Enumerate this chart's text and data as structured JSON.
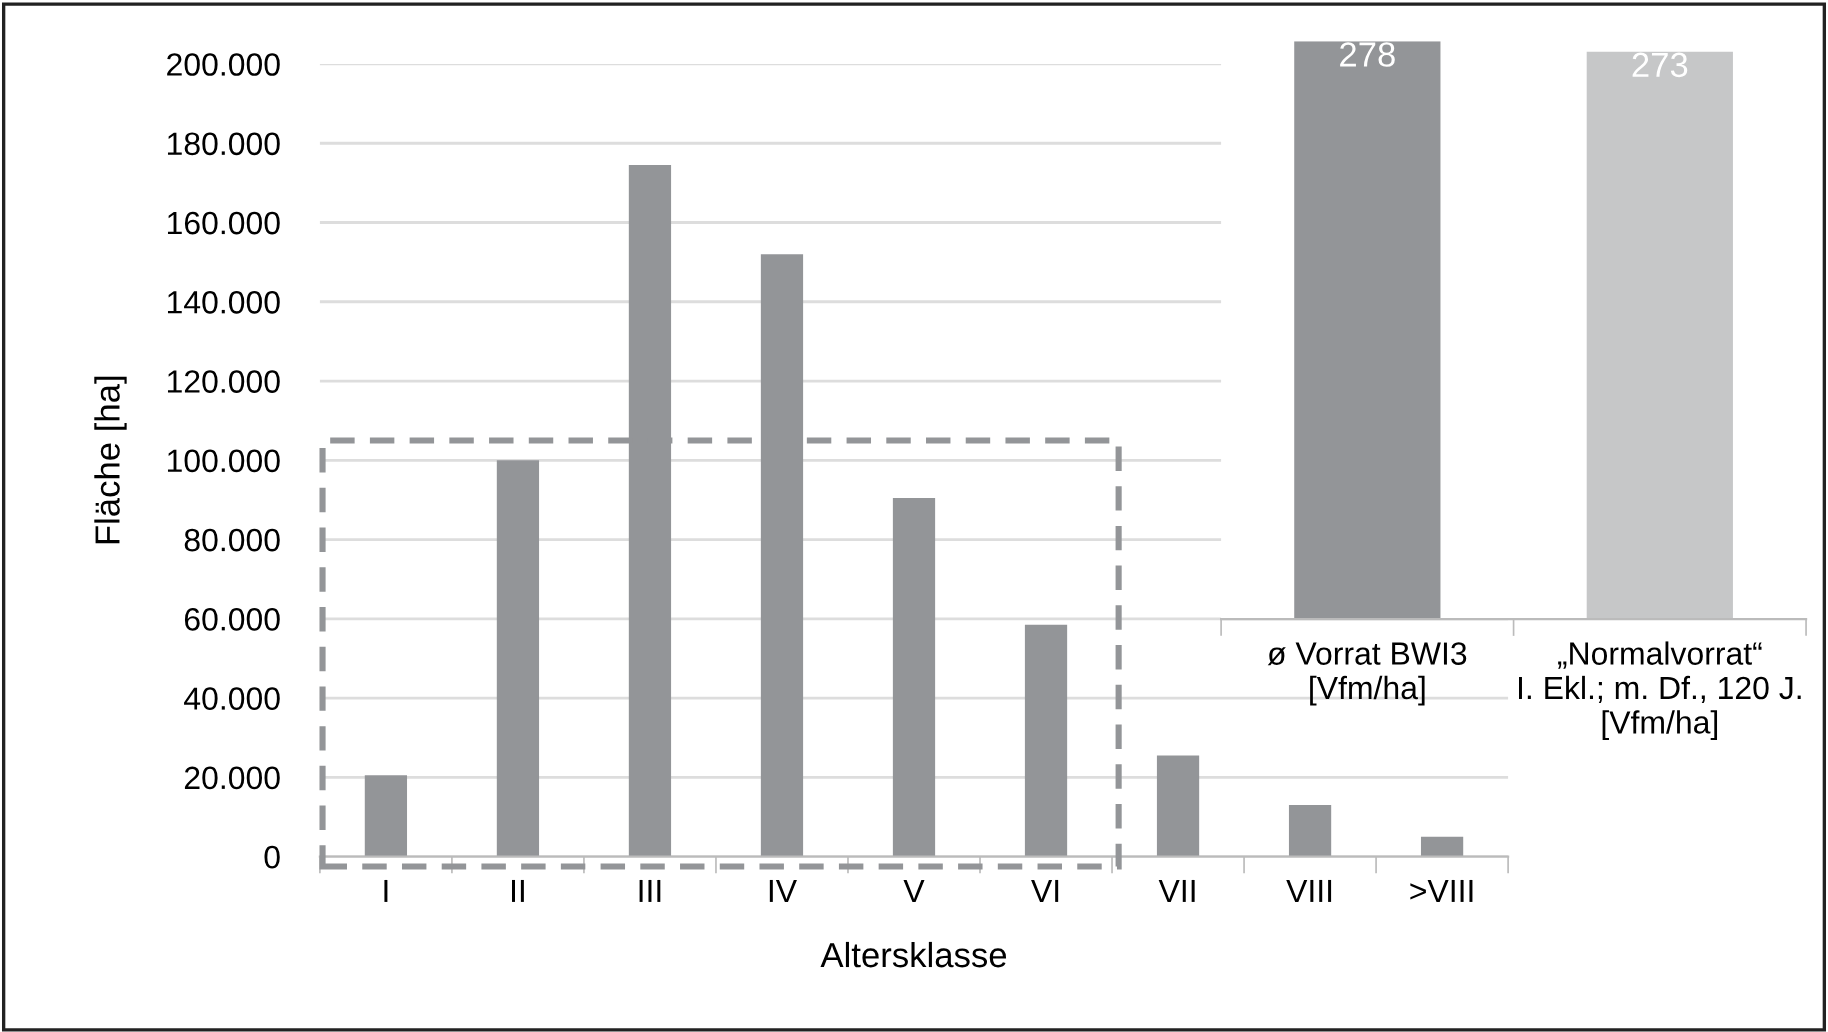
{
  "chart_data": [
    {
      "type": "bar",
      "xlabel": "Altersklasse",
      "ylabel": "Fläche [ha]",
      "categories": [
        "I",
        "II",
        "III",
        "IV",
        "V",
        "VI",
        "VII",
        "VIII",
        ">VIII"
      ],
      "values": [
        20500,
        100000,
        174500,
        152000,
        90500,
        58500,
        25500,
        13000,
        5000
      ],
      "color": "#939598",
      "ylim": [
        0,
        200000
      ],
      "yticks": [
        {
          "value": 0,
          "label": "0"
        },
        {
          "value": 20000,
          "label": "20.000"
        },
        {
          "value": 40000,
          "label": "40.000"
        },
        {
          "value": 60000,
          "label": "60.000"
        },
        {
          "value": 80000,
          "label": "80.000"
        },
        {
          "value": 100000,
          "label": "100.000"
        },
        {
          "value": 120000,
          "label": "120.000"
        },
        {
          "value": 140000,
          "label": "140.000"
        },
        {
          "value": 160000,
          "label": "160.000"
        },
        {
          "value": 180000,
          "label": "180.000"
        },
        {
          "value": 200000,
          "label": "200.000"
        }
      ],
      "grid": "y"
    },
    {
      "type": "bar",
      "categories": [
        "ø Vorrat BWI3\n[Vfm/ha]",
        "„Normalvorrat“\nI. Ekl.; m. Df., 120 J.\n[Vfm/ha]"
      ],
      "values": [
        278,
        273
      ],
      "colors": [
        "#939598",
        "#c6c7c8"
      ],
      "data_labels": true,
      "tick_labels": "x"
    }
  ]
}
